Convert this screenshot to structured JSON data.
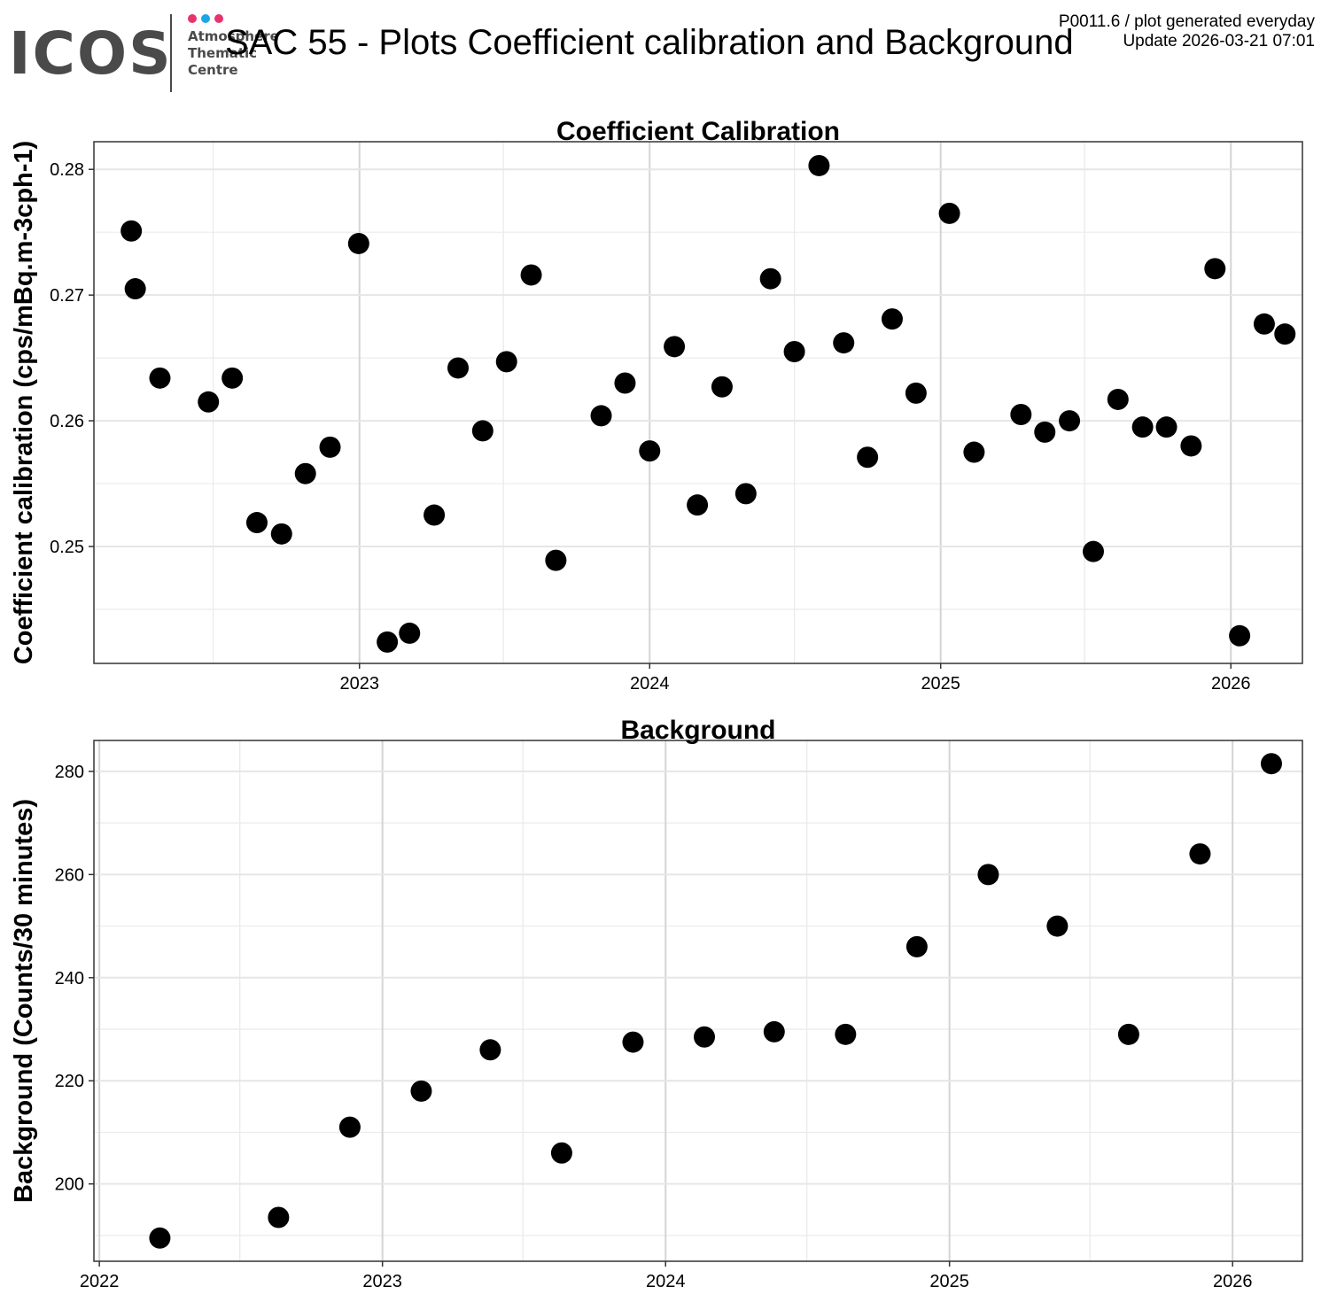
{
  "header": {
    "title": "SAC 55 - Plots Coefficient calibration and Background",
    "meta_line1": "P0011.6 / plot generated everyday",
    "meta_line2": "Update  2026-03-21 07:01",
    "logo": {
      "main_text": "ICOS",
      "sub_lines": [
        "Atmosphere",
        "Thematic",
        "Centre"
      ],
      "dot_colors": [
        "#e8336f",
        "#1ea5e8",
        "#e8336f"
      ],
      "text_color": "#4a4a4a"
    }
  },
  "chart_data": [
    {
      "type": "scatter",
      "title": "Coefficient Calibration",
      "xlabel": "",
      "ylabel": "Coefficient calibration (cps/mBq.m-3cph-1)",
      "x_type": "date",
      "xlim": [
        "2022-02-01",
        "2026-04-01"
      ],
      "ylim": [
        0.2407,
        0.2822
      ],
      "x_ticks": [
        "2023-01-01",
        "2024-01-01",
        "2025-01-01",
        "2026-01-01"
      ],
      "x_tick_labels": [
        "2023",
        "2024",
        "2025",
        "2026"
      ],
      "y_ticks": [
        0.25,
        0.26,
        0.27,
        0.28
      ],
      "y_tick_labels": [
        "0.25",
        "0.26",
        "0.27",
        "0.28"
      ],
      "grid": true,
      "point_color": "#000000",
      "x": [
        "2022-03-20",
        "2022-03-25",
        "2022-04-25",
        "2022-06-25",
        "2022-07-25",
        "2022-08-25",
        "2022-09-25",
        "2022-10-25",
        "2022-11-25",
        "2022-12-31",
        "2023-02-05",
        "2023-03-05",
        "2023-04-05",
        "2023-05-05",
        "2023-06-05",
        "2023-07-05",
        "2023-08-05",
        "2023-09-05",
        "2023-11-01",
        "2023-12-01",
        "2024-01-01",
        "2024-02-01",
        "2024-03-01",
        "2024-04-01",
        "2024-05-01",
        "2024-06-01",
        "2024-07-01",
        "2024-08-01",
        "2024-09-01",
        "2024-10-01",
        "2024-11-01",
        "2024-12-01",
        "2025-01-12",
        "2025-02-12",
        "2025-04-12",
        "2025-05-12",
        "2025-06-12",
        "2025-07-12",
        "2025-08-12",
        "2025-09-12",
        "2025-10-12",
        "2025-11-12",
        "2025-12-12",
        "2026-01-12",
        "2026-02-12",
        "2026-03-10"
      ],
      "y": [
        0.2751,
        0.2705,
        0.2634,
        0.2615,
        0.2634,
        0.2519,
        0.251,
        0.2558,
        0.2579,
        0.2741,
        0.2424,
        0.2431,
        0.2525,
        0.2642,
        0.2592,
        0.2647,
        0.2716,
        0.2489,
        0.2604,
        0.263,
        0.2576,
        0.2659,
        0.2533,
        0.2627,
        0.2542,
        0.2713,
        0.2655,
        0.2803,
        0.2662,
        0.2571,
        0.2681,
        0.2622,
        0.2765,
        0.2575,
        0.2605,
        0.2591,
        0.26,
        0.2496,
        0.2617,
        0.2595,
        0.2595,
        0.258,
        0.2721,
        0.2429,
        0.2677,
        0.2669
      ]
    },
    {
      "type": "scatter",
      "title": "Background",
      "xlabel": "",
      "ylabel": "Background (Counts/30 minutes)",
      "x_type": "date",
      "xlim": [
        "2021-12-25",
        "2026-04-01"
      ],
      "ylim": [
        185,
        286
      ],
      "x_ticks": [
        "2022-01-01",
        "2023-01-01",
        "2024-01-01",
        "2025-01-01",
        "2026-01-01"
      ],
      "x_tick_labels": [
        "2022",
        "2023",
        "2024",
        "2025",
        "2026"
      ],
      "y_ticks": [
        200,
        220,
        240,
        260,
        280
      ],
      "y_tick_labels": [
        "200",
        "220",
        "240",
        "260",
        "280"
      ],
      "grid": true,
      "point_color": "#000000",
      "x": [
        "2022-03-20",
        "2022-08-20",
        "2022-11-20",
        "2023-02-20",
        "2023-05-20",
        "2023-08-20",
        "2023-11-20",
        "2024-02-20",
        "2024-05-20",
        "2024-08-20",
        "2024-11-20",
        "2025-02-20",
        "2025-05-20",
        "2025-08-20",
        "2025-11-20",
        "2026-02-20"
      ],
      "y": [
        189.5,
        193.5,
        211,
        218,
        226,
        206,
        227.5,
        228.5,
        229.5,
        229,
        246,
        260,
        250,
        229,
        264,
        281.5
      ]
    }
  ]
}
